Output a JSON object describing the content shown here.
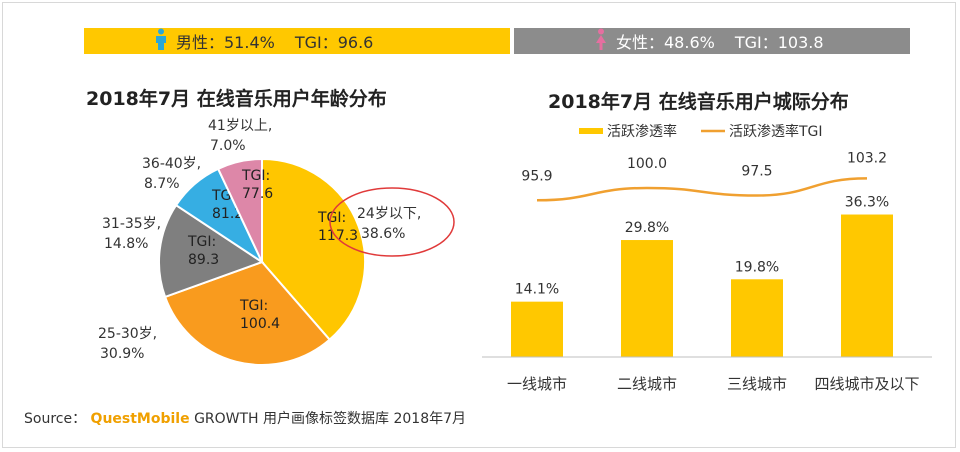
{
  "banners": {
    "male": {
      "icon": "male-icon",
      "label": "男性：51.4%",
      "tgi": "TGI：96.6",
      "color": "#ffc800"
    },
    "female": {
      "icon": "female-icon",
      "label": "女性：48.6%",
      "tgi": "TGI：103.8",
      "color": "#8c8c8c"
    }
  },
  "source": {
    "prefix": "Source：",
    "brand": "QuestMobile",
    "rest": "GROWTH 用户画像标签数据库 2018年7月"
  },
  "chart_data": [
    {
      "type": "pie",
      "title": "2018年7月 在线音乐用户年龄分布",
      "slices": [
        {
          "label": "24岁以下,",
          "value": 38.6,
          "value_label": "38.6%",
          "tgi_label": "TGI:",
          "tgi": "117.3",
          "color": "#ffc600",
          "highlight": true
        },
        {
          "label": "25-30岁,",
          "value": 30.9,
          "value_label": "30.9%",
          "tgi_label": "TGI:",
          "tgi": "100.4",
          "color": "#f99b1e"
        },
        {
          "label": "31-35岁,",
          "value": 14.8,
          "value_label": "14.8%",
          "tgi_label": "TGI:",
          "tgi": "89.3",
          "color": "#7f7f7f"
        },
        {
          "label": "36-40岁,",
          "value": 8.7,
          "value_label": "8.7%",
          "tgi_label": "TGI:",
          "tgi": "81.2",
          "color": "#36aee3"
        },
        {
          "label": "41岁以上,",
          "value": 7.0,
          "value_label": "7.0%",
          "tgi_label": "TGI:",
          "tgi": "77.6",
          "color": "#dd87a8"
        }
      ]
    },
    {
      "type": "bar",
      "title": "2018年7月 在线音乐用户城际分布",
      "categories": [
        "一线城市",
        "二线城市",
        "三线城市",
        "四线城市及以下"
      ],
      "series": [
        {
          "name": "活跃渗透率",
          "type": "bar",
          "values": [
            14.1,
            29.8,
            19.8,
            36.3
          ],
          "labels": [
            "14.1%",
            "29.8%",
            "19.8%",
            "36.3%"
          ],
          "color": "#ffc800"
        },
        {
          "name": "活跃渗透率TGI",
          "type": "line",
          "values": [
            95.9,
            100.0,
            97.5,
            103.2
          ],
          "labels": [
            "95.9",
            "100.0",
            "97.5",
            "103.2"
          ],
          "color": "#f0a030"
        }
      ],
      "legend": "top"
    }
  ]
}
